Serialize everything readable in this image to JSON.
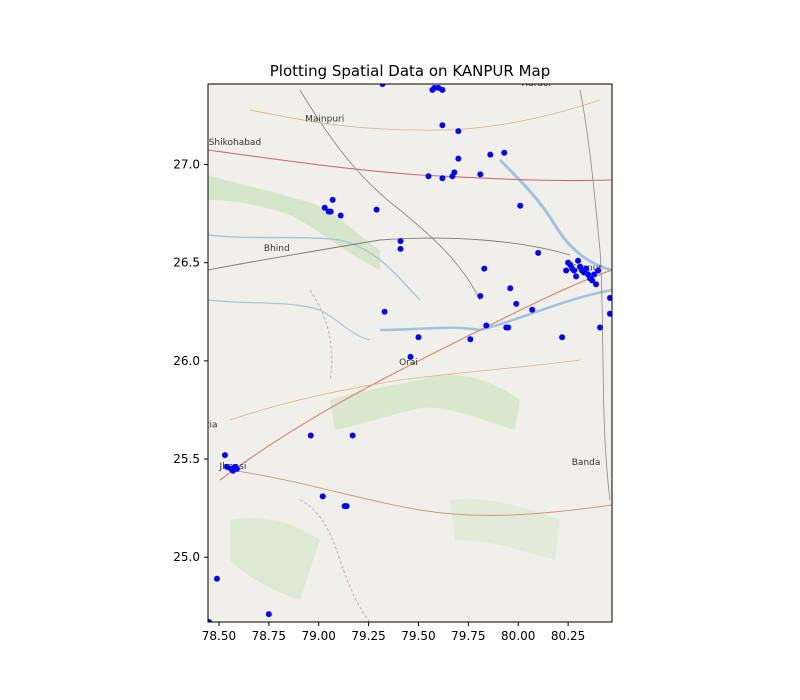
{
  "chart_data": {
    "type": "scatter",
    "title": "Plotting Spatial Data on KANPUR Map",
    "xlabel": "",
    "ylabel": "",
    "xlim": [
      78.445,
      80.47
    ],
    "ylim": [
      24.67,
      27.41
    ],
    "xticks": [
      78.5,
      78.75,
      79.0,
      79.25,
      79.5,
      79.75,
      80.0,
      80.25
    ],
    "xtick_labels": [
      "78.50",
      "78.75",
      "79.00",
      "79.25",
      "79.50",
      "79.75",
      "80.00",
      "80.25"
    ],
    "yticks": [
      25.0,
      25.5,
      26.0,
      26.5,
      27.0
    ],
    "ytick_labels": [
      "25.0",
      "25.5",
      "26.0",
      "26.5",
      "27.0"
    ],
    "grid": false,
    "marker_color": "#0000ff",
    "basemap": "openstreetmap",
    "place_labels": [
      {
        "name": "Hardoi",
        "lon": 80.09,
        "lat": 27.4
      },
      {
        "name": "Mainpuri",
        "lon": 79.03,
        "lat": 27.22
      },
      {
        "name": "Shikohabad",
        "lon": 78.58,
        "lat": 27.1
      },
      {
        "name": "Bhind",
        "lon": 78.79,
        "lat": 26.56
      },
      {
        "name": "Kanpur",
        "lon": 80.34,
        "lat": 26.46
      },
      {
        "name": "Orai",
        "lon": 79.45,
        "lat": 25.98
      },
      {
        "name": "atia",
        "lon": 78.45,
        "lat": 25.66
      },
      {
        "name": "Jhansi",
        "lon": 78.57,
        "lat": 25.45
      },
      {
        "name": "Banda",
        "lon": 80.34,
        "lat": 25.47
      }
    ],
    "points": [
      {
        "x": 79.32,
        "y": 27.41
      },
      {
        "x": 79.57,
        "y": 27.38
      },
      {
        "x": 79.58,
        "y": 27.39
      },
      {
        "x": 79.6,
        "y": 27.39
      },
      {
        "x": 79.62,
        "y": 27.38
      },
      {
        "x": 79.62,
        "y": 27.2
      },
      {
        "x": 79.7,
        "y": 27.17
      },
      {
        "x": 79.86,
        "y": 27.05
      },
      {
        "x": 79.93,
        "y": 27.06
      },
      {
        "x": 79.7,
        "y": 27.03
      },
      {
        "x": 79.55,
        "y": 26.94
      },
      {
        "x": 79.62,
        "y": 26.93
      },
      {
        "x": 79.67,
        "y": 26.94
      },
      {
        "x": 79.68,
        "y": 26.96
      },
      {
        "x": 79.81,
        "y": 26.95
      },
      {
        "x": 80.01,
        "y": 26.79
      },
      {
        "x": 79.07,
        "y": 26.82
      },
      {
        "x": 79.03,
        "y": 26.78
      },
      {
        "x": 79.05,
        "y": 26.76
      },
      {
        "x": 79.06,
        "y": 26.76
      },
      {
        "x": 79.11,
        "y": 26.74
      },
      {
        "x": 79.29,
        "y": 26.77
      },
      {
        "x": 79.41,
        "y": 26.61
      },
      {
        "x": 79.41,
        "y": 26.57
      },
      {
        "x": 80.1,
        "y": 26.55
      },
      {
        "x": 79.83,
        "y": 26.47
      },
      {
        "x": 80.25,
        "y": 26.5
      },
      {
        "x": 80.26,
        "y": 26.49
      },
      {
        "x": 80.27,
        "y": 26.47
      },
      {
        "x": 80.28,
        "y": 26.46
      },
      {
        "x": 80.3,
        "y": 26.51
      },
      {
        "x": 80.31,
        "y": 26.48
      },
      {
        "x": 80.32,
        "y": 26.46
      },
      {
        "x": 80.33,
        "y": 26.45
      },
      {
        "x": 80.34,
        "y": 26.47
      },
      {
        "x": 80.35,
        "y": 26.44
      },
      {
        "x": 80.36,
        "y": 26.42
      },
      {
        "x": 80.38,
        "y": 26.44
      },
      {
        "x": 80.39,
        "y": 26.39
      },
      {
        "x": 80.4,
        "y": 26.46
      },
      {
        "x": 80.29,
        "y": 26.43
      },
      {
        "x": 80.24,
        "y": 26.46
      },
      {
        "x": 80.37,
        "y": 26.41
      },
      {
        "x": 79.96,
        "y": 26.37
      },
      {
        "x": 79.81,
        "y": 26.33
      },
      {
        "x": 79.99,
        "y": 26.29
      },
      {
        "x": 80.07,
        "y": 26.26
      },
      {
        "x": 80.46,
        "y": 26.32
      },
      {
        "x": 80.46,
        "y": 26.24
      },
      {
        "x": 79.84,
        "y": 26.18
      },
      {
        "x": 79.94,
        "y": 26.17
      },
      {
        "x": 79.95,
        "y": 26.17
      },
      {
        "x": 80.41,
        "y": 26.17
      },
      {
        "x": 79.33,
        "y": 26.25
      },
      {
        "x": 79.5,
        "y": 26.12
      },
      {
        "x": 79.76,
        "y": 26.11
      },
      {
        "x": 80.22,
        "y": 26.12
      },
      {
        "x": 79.46,
        "y": 26.02
      },
      {
        "x": 78.96,
        "y": 25.62
      },
      {
        "x": 79.17,
        "y": 25.62
      },
      {
        "x": 78.53,
        "y": 25.52
      },
      {
        "x": 78.54,
        "y": 25.46
      },
      {
        "x": 78.56,
        "y": 25.45
      },
      {
        "x": 78.57,
        "y": 25.44
      },
      {
        "x": 78.58,
        "y": 25.46
      },
      {
        "x": 78.59,
        "y": 25.45
      },
      {
        "x": 79.02,
        "y": 25.31
      },
      {
        "x": 79.13,
        "y": 25.26
      },
      {
        "x": 79.14,
        "y": 25.26
      },
      {
        "x": 78.49,
        "y": 24.89
      },
      {
        "x": 78.75,
        "y": 24.71
      },
      {
        "x": 78.45,
        "y": 24.67
      }
    ]
  }
}
